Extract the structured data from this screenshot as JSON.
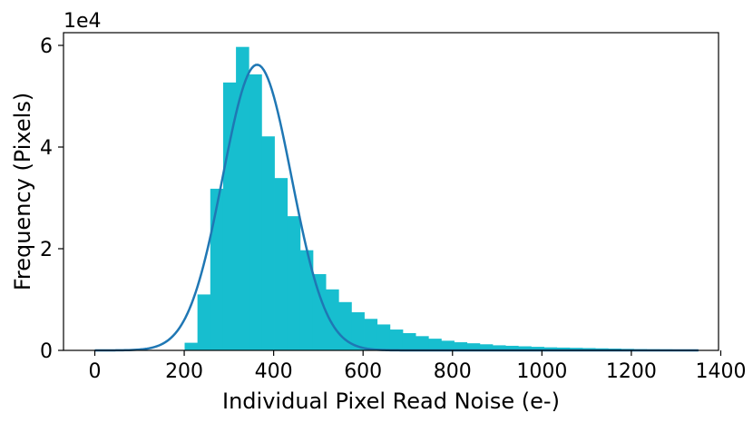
{
  "chart_data": {
    "type": "bar",
    "xlabel": "Individual Pixel Read Noise (e-)",
    "ylabel": "Frequency (Pixels)",
    "y_offset_label": "1e4",
    "y_multiplier": 10000,
    "xlim": [
      -70,
      1395
    ],
    "ylim": [
      0,
      6.25
    ],
    "x_ticks": [
      0,
      200,
      400,
      600,
      800,
      1000,
      1200,
      1400
    ],
    "y_ticks": [
      0,
      2,
      4,
      6
    ],
    "bar_color": "#17becf",
    "curve_color": "#1f77b4",
    "grid": false,
    "bins": {
      "edges": [
        0,
        28.7,
        57.4,
        86.1,
        114.8,
        143.5,
        172.2,
        200.9,
        229.6,
        258.3,
        287.0,
        315.7,
        344.4,
        373.1,
        401.8,
        430.5,
        459.2,
        487.9,
        516.6,
        545.3,
        574.0,
        602.7,
        631.4,
        660.1,
        688.8,
        717.5,
        746.2,
        774.9,
        803.6,
        832.3,
        861.0,
        889.7,
        918.4,
        947.1,
        975.8,
        1004.5,
        1033.2,
        1061.9,
        1090.6,
        1119.3,
        1148.0,
        1176.7,
        1205.4,
        1234.1,
        1262.8,
        1291.5,
        1320.2,
        1348.9
      ],
      "counts": [
        0,
        0,
        0,
        0,
        0,
        0,
        0,
        0.15,
        1.1,
        3.18,
        5.27,
        5.97,
        5.43,
        4.21,
        3.39,
        2.64,
        1.97,
        1.5,
        1.2,
        0.95,
        0.75,
        0.62,
        0.51,
        0.41,
        0.34,
        0.28,
        0.23,
        0.19,
        0.16,
        0.14,
        0.12,
        0.1,
        0.09,
        0.08,
        0.07,
        0.06,
        0.055,
        0.05,
        0.045,
        0.04,
        0.035,
        0.03,
        0.025,
        0.022,
        0.02,
        0.018,
        0.015
      ]
    },
    "fit_curve": {
      "type": "gaussian",
      "mean": 363,
      "sigma": 77,
      "amplitude": 5.62,
      "x_range": [
        0,
        1350
      ]
    }
  }
}
